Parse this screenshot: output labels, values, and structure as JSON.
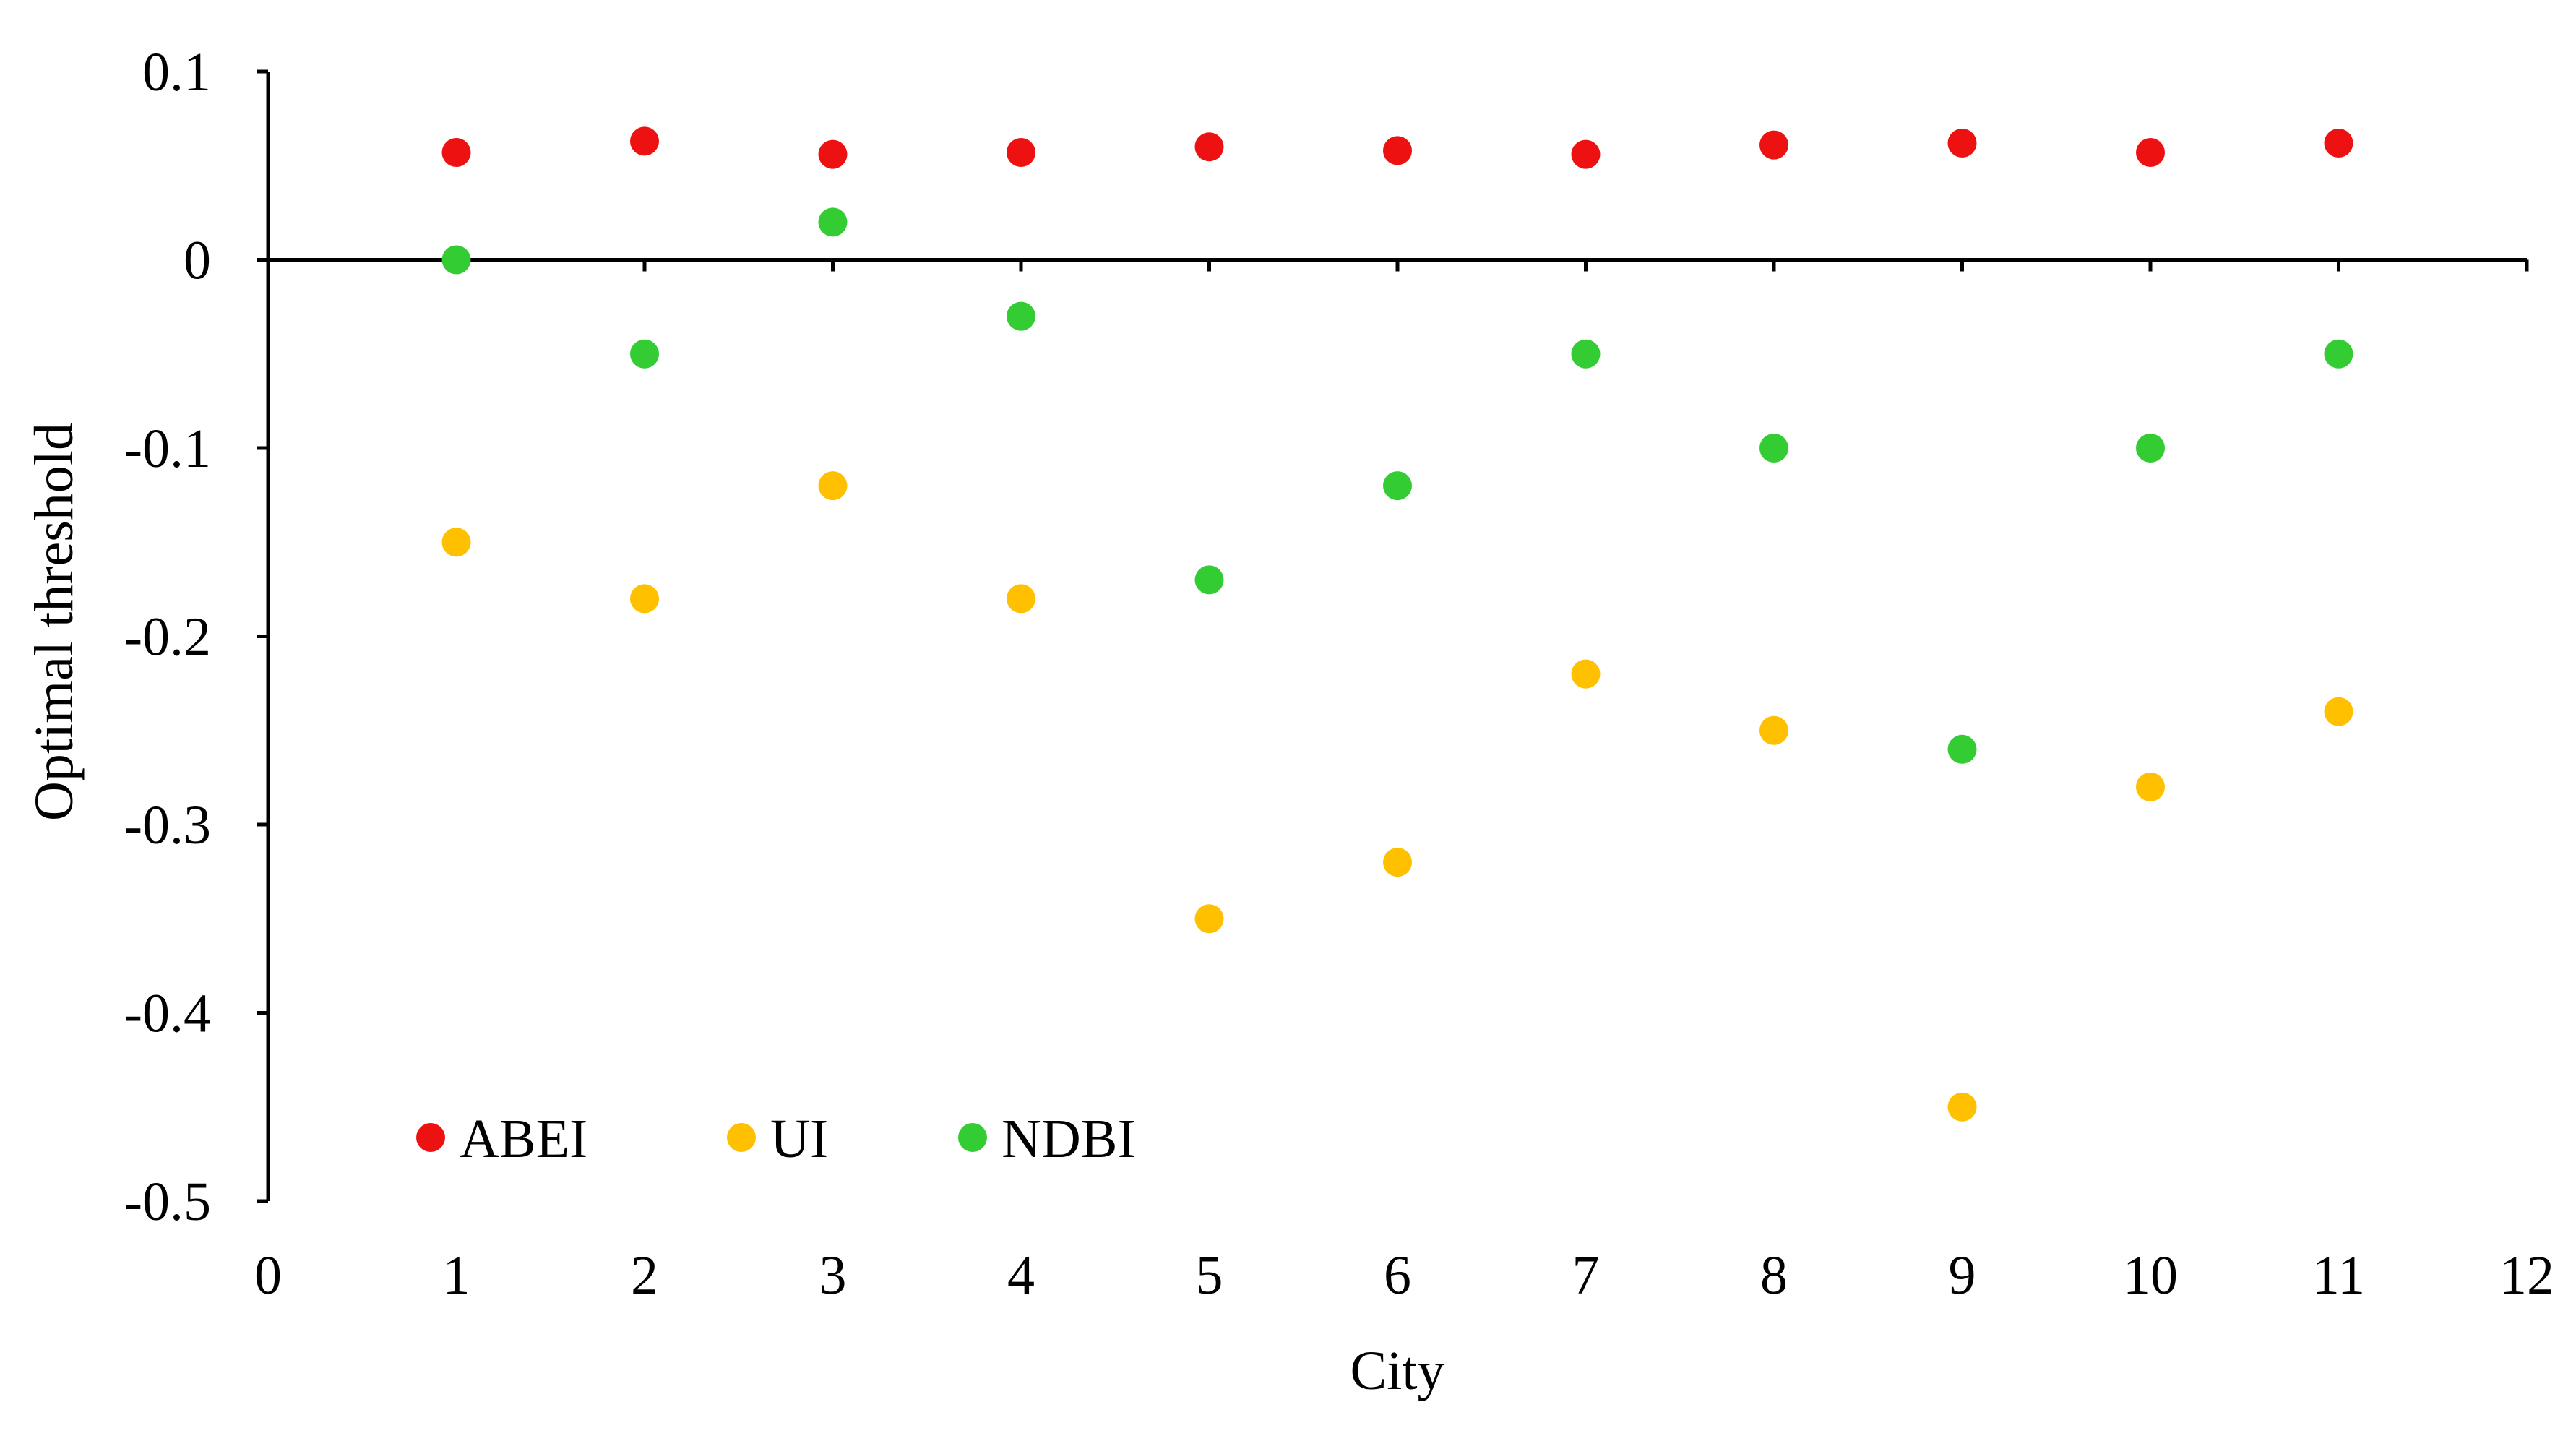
{
  "chart_data": {
    "type": "scatter",
    "title": "",
    "xlabel": "City",
    "ylabel": "Optimal threshold",
    "xlim": [
      0,
      12
    ],
    "ylim": [
      -0.5,
      0.1
    ],
    "x_ticks": [
      "0",
      "1",
      "2",
      "3",
      "4",
      "5",
      "6",
      "7",
      "8",
      "9",
      "10",
      "11",
      "12"
    ],
    "y_ticks": [
      "0.1",
      "0",
      "-0.1",
      "-0.2",
      "-0.3",
      "-0.4",
      "-0.5"
    ],
    "grid": false,
    "legend_position": "bottom-left",
    "x": [
      1,
      2,
      3,
      4,
      5,
      6,
      7,
      8,
      9,
      10,
      11
    ],
    "series": [
      {
        "name": "ABEI",
        "color": "#ee1111",
        "values": [
          0.057,
          0.063,
          0.056,
          0.057,
          0.06,
          0.058,
          0.056,
          0.061,
          0.062,
          0.057,
          0.062
        ]
      },
      {
        "name": "UI",
        "color": "#ffc000",
        "values": [
          -0.15,
          -0.18,
          -0.12,
          -0.18,
          -0.35,
          -0.32,
          -0.22,
          -0.25,
          -0.45,
          -0.28,
          -0.24
        ]
      },
      {
        "name": "NDBI",
        "color": "#33cc33",
        "values": [
          0.0,
          -0.05,
          0.02,
          -0.03,
          -0.17,
          -0.12,
          -0.05,
          -0.1,
          -0.26,
          -0.1,
          -0.05
        ]
      }
    ]
  }
}
